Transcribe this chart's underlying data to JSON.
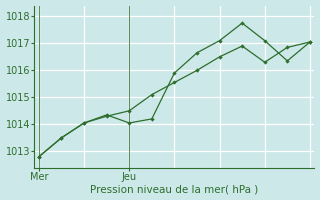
{
  "bg_color": "#cce8e8",
  "grid_color": "#ffffff",
  "line_color": "#2d6e2d",
  "line1_x": [
    0,
    0.5,
    1,
    1.5,
    2,
    2.5,
    3,
    3.5,
    4,
    4.5,
    5,
    5.5,
    6
  ],
  "line1_y": [
    1012.8,
    1013.5,
    1014.05,
    1014.3,
    1014.5,
    1015.1,
    1015.55,
    1016.0,
    1016.5,
    1016.9,
    1016.3,
    1016.85,
    1017.05
  ],
  "line2_x": [
    0,
    0.5,
    1,
    1.5,
    2,
    2.5,
    3,
    3.5,
    4,
    4.5,
    5,
    5.5,
    6
  ],
  "line2_y": [
    1012.8,
    1013.5,
    1014.05,
    1014.35,
    1014.05,
    1014.2,
    1015.9,
    1016.65,
    1017.1,
    1017.75,
    1017.1,
    1016.35,
    1017.05
  ],
  "yticks": [
    1013,
    1014,
    1015,
    1016,
    1017,
    1018
  ],
  "ylim": [
    1012.4,
    1018.4
  ],
  "xtick_positions": [
    0,
    2
  ],
  "xtick_labels": [
    "Mer",
    "Jeu"
  ],
  "xlabel": "Pression niveau de la mer( hPa )",
  "vline_x": [
    0,
    2
  ],
  "xlim": [
    -0.1,
    6.1
  ],
  "grid_x": [
    0,
    1,
    2,
    3,
    4,
    5,
    6
  ]
}
